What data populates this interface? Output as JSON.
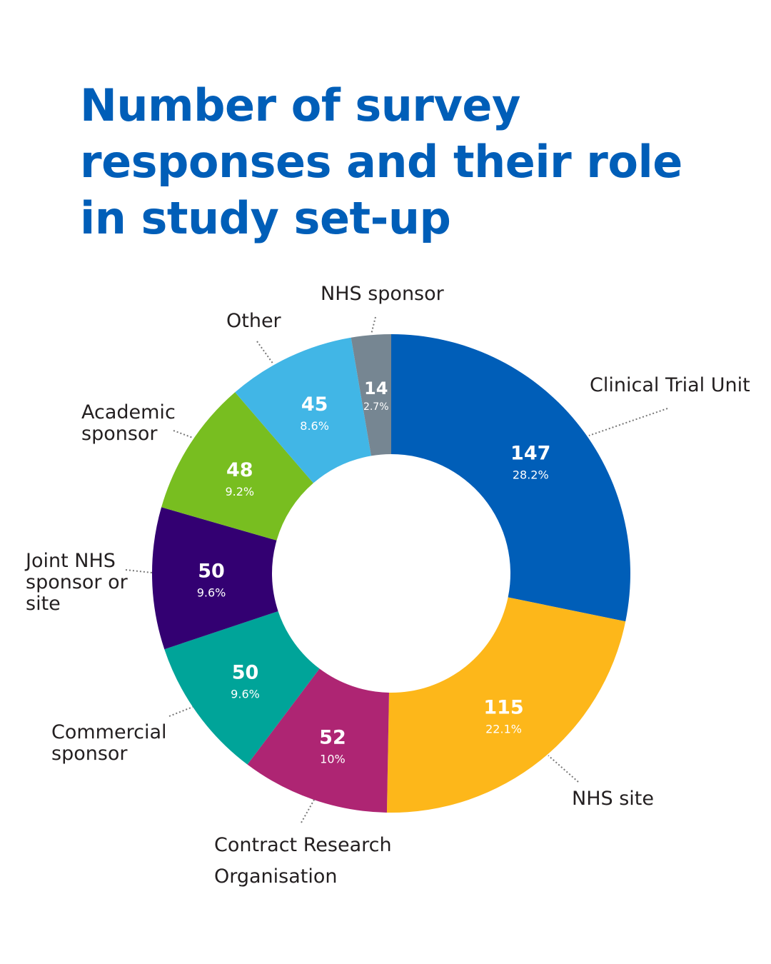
{
  "chart_data": {
    "type": "pie",
    "subtype": "donut",
    "title": "Number of survey responses and their role in study set-up",
    "slices": [
      {
        "label": "Clinical Trial Unit",
        "value": 147,
        "percent": "28.2%",
        "color": "#005EB8"
      },
      {
        "label": "NHS site",
        "value": 115,
        "percent": "22.1%",
        "color": "#FDB71A"
      },
      {
        "label": "Contract Research Organisation",
        "value": 52,
        "percent": "10%",
        "color": "#AE2573"
      },
      {
        "label": "Commercial sponsor",
        "value": 50,
        "percent": "9.6%",
        "color": "#00A499"
      },
      {
        "label": "Joint NHS sponsor or site",
        "value": 50,
        "percent": "9.6%",
        "color": "#330072"
      },
      {
        "label": "Academic sponsor",
        "value": 48,
        "percent": "9.2%",
        "color": "#78BE20"
      },
      {
        "label": "Other",
        "value": 45,
        "percent": "8.6%",
        "color": "#41B6E6"
      },
      {
        "label": "NHS sponsor",
        "value": 14,
        "percent": "2.7%",
        "color": "#768692"
      }
    ],
    "start": "top",
    "direction": "clockwise"
  }
}
